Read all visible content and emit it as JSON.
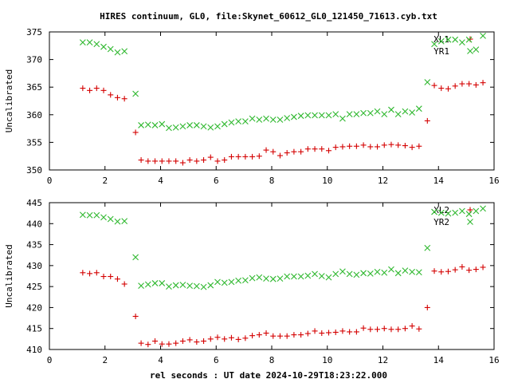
{
  "title": "HIRES continuum, GL0, file:Skynet_60612_GL0_121450_71613.cyb.txt",
  "xlabel": "rel seconds : UT date 2024-10-29T18:23:22.000",
  "colors": {
    "red": "#d40000",
    "green": "#2fb82f",
    "axis": "#000000"
  },
  "chart_data": [
    {
      "type": "scatter",
      "ylabel": "Uncalibrated",
      "xlim": [
        0,
        16
      ],
      "ylim": [
        350,
        375
      ],
      "xticks": [
        0,
        2,
        4,
        6,
        8,
        10,
        12,
        14,
        16
      ],
      "yticks": [
        350,
        355,
        360,
        365,
        370,
        375
      ],
      "legend_position": "top-right",
      "series": [
        {
          "name": "XL1",
          "marker": "plus",
          "color": "red",
          "points": [
            [
              1.2,
              364.8
            ],
            [
              1.45,
              364.4
            ],
            [
              1.7,
              364.8
            ],
            [
              1.95,
              364.4
            ],
            [
              2.2,
              363.6
            ],
            [
              2.45,
              363.1
            ],
            [
              2.7,
              362.9
            ],
            [
              3.1,
              356.8
            ],
            [
              3.3,
              351.8
            ],
            [
              3.55,
              351.6
            ],
            [
              3.8,
              351.6
            ],
            [
              4.05,
              351.6
            ],
            [
              4.3,
              351.6
            ],
            [
              4.55,
              351.6
            ],
            [
              4.8,
              351.3
            ],
            [
              5.05,
              351.8
            ],
            [
              5.3,
              351.6
            ],
            [
              5.55,
              351.8
            ],
            [
              5.8,
              352.3
            ],
            [
              6.05,
              351.6
            ],
            [
              6.3,
              351.8
            ],
            [
              6.55,
              352.4
            ],
            [
              6.8,
              352.4
            ],
            [
              7.05,
              352.4
            ],
            [
              7.3,
              352.4
            ],
            [
              7.55,
              352.5
            ],
            [
              7.8,
              353.6
            ],
            [
              8.05,
              353.3
            ],
            [
              8.3,
              352.6
            ],
            [
              8.55,
              353.1
            ],
            [
              8.8,
              353.3
            ],
            [
              9.05,
              353.3
            ],
            [
              9.3,
              353.8
            ],
            [
              9.55,
              353.8
            ],
            [
              9.8,
              353.8
            ],
            [
              10.05,
              353.5
            ],
            [
              10.3,
              354.1
            ],
            [
              10.55,
              354.2
            ],
            [
              10.8,
              354.3
            ],
            [
              11.05,
              354.3
            ],
            [
              11.3,
              354.5
            ],
            [
              11.55,
              354.2
            ],
            [
              11.8,
              354.2
            ],
            [
              12.05,
              354.5
            ],
            [
              12.3,
              354.6
            ],
            [
              12.55,
              354.5
            ],
            [
              12.8,
              354.4
            ],
            [
              13.05,
              354.1
            ],
            [
              13.3,
              354.3
            ],
            [
              13.6,
              358.9
            ],
            [
              13.85,
              365.3
            ],
            [
              14.1,
              364.8
            ],
            [
              14.35,
              364.7
            ],
            [
              14.6,
              365.2
            ],
            [
              14.85,
              365.6
            ],
            [
              15.1,
              365.6
            ],
            [
              15.35,
              365.4
            ],
            [
              15.6,
              365.8
            ]
          ]
        },
        {
          "name": "YR1",
          "marker": "cross",
          "color": "green",
          "points": [
            [
              1.2,
              373.1
            ],
            [
              1.45,
              373.1
            ],
            [
              1.7,
              372.8
            ],
            [
              1.95,
              372.3
            ],
            [
              2.2,
              371.9
            ],
            [
              2.45,
              371.3
            ],
            [
              2.7,
              371.5
            ],
            [
              3.1,
              363.8
            ],
            [
              3.3,
              358.1
            ],
            [
              3.55,
              358.2
            ],
            [
              3.8,
              358.1
            ],
            [
              4.05,
              358.3
            ],
            [
              4.3,
              357.6
            ],
            [
              4.55,
              357.7
            ],
            [
              4.8,
              357.9
            ],
            [
              5.05,
              358.1
            ],
            [
              5.3,
              358.1
            ],
            [
              5.55,
              357.9
            ],
            [
              5.8,
              357.7
            ],
            [
              6.05,
              357.9
            ],
            [
              6.3,
              358.3
            ],
            [
              6.55,
              358.6
            ],
            [
              6.8,
              358.8
            ],
            [
              7.05,
              358.8
            ],
            [
              7.3,
              359.3
            ],
            [
              7.55,
              359.1
            ],
            [
              7.8,
              359.3
            ],
            [
              8.05,
              359.1
            ],
            [
              8.3,
              359.1
            ],
            [
              8.55,
              359.4
            ],
            [
              8.8,
              359.6
            ],
            [
              9.05,
              359.8
            ],
            [
              9.3,
              359.9
            ],
            [
              9.55,
              359.9
            ],
            [
              9.8,
              359.9
            ],
            [
              10.05,
              359.9
            ],
            [
              10.3,
              360.1
            ],
            [
              10.55,
              359.3
            ],
            [
              10.8,
              360.1
            ],
            [
              11.05,
              360.1
            ],
            [
              11.3,
              360.3
            ],
            [
              11.55,
              360.3
            ],
            [
              11.8,
              360.6
            ],
            [
              12.05,
              360.1
            ],
            [
              12.3,
              360.9
            ],
            [
              12.55,
              360.1
            ],
            [
              12.8,
              360.6
            ],
            [
              13.05,
              360.4
            ],
            [
              13.3,
              361.1
            ],
            [
              13.6,
              365.9
            ],
            [
              13.85,
              372.8
            ],
            [
              14.1,
              373.3
            ],
            [
              14.35,
              373.6
            ],
            [
              14.6,
              373.6
            ],
            [
              14.85,
              373.1
            ],
            [
              15.1,
              373.6
            ],
            [
              15.35,
              371.8
            ],
            [
              15.6,
              374.3
            ]
          ]
        }
      ]
    },
    {
      "type": "scatter",
      "ylabel": "Uncalibrated",
      "xlim": [
        0,
        16
      ],
      "ylim": [
        410,
        445
      ],
      "xticks": [
        0,
        2,
        4,
        6,
        8,
        10,
        12,
        14,
        16
      ],
      "yticks": [
        410,
        415,
        420,
        425,
        430,
        435,
        440,
        445
      ],
      "legend_position": "top-right",
      "series": [
        {
          "name": "XL2",
          "marker": "plus",
          "color": "red",
          "points": [
            [
              1.2,
              428.3
            ],
            [
              1.45,
              428.1
            ],
            [
              1.7,
              428.3
            ],
            [
              1.95,
              427.4
            ],
            [
              2.2,
              427.4
            ],
            [
              2.45,
              426.8
            ],
            [
              2.7,
              425.6
            ],
            [
              3.1,
              417.9
            ],
            [
              3.3,
              411.5
            ],
            [
              3.55,
              411.2
            ],
            [
              3.8,
              412.0
            ],
            [
              4.05,
              411.3
            ],
            [
              4.3,
              411.3
            ],
            [
              4.55,
              411.5
            ],
            [
              4.8,
              412.0
            ],
            [
              5.05,
              412.3
            ],
            [
              5.3,
              411.8
            ],
            [
              5.55,
              412.0
            ],
            [
              5.8,
              412.5
            ],
            [
              6.05,
              412.9
            ],
            [
              6.3,
              412.5
            ],
            [
              6.55,
              412.8
            ],
            [
              6.8,
              412.4
            ],
            [
              7.05,
              412.7
            ],
            [
              7.3,
              413.3
            ],
            [
              7.55,
              413.5
            ],
            [
              7.8,
              413.9
            ],
            [
              8.05,
              413.2
            ],
            [
              8.3,
              413.2
            ],
            [
              8.55,
              413.2
            ],
            [
              8.8,
              413.5
            ],
            [
              9.05,
              413.5
            ],
            [
              9.3,
              413.8
            ],
            [
              9.55,
              414.4
            ],
            [
              9.8,
              413.9
            ],
            [
              10.05,
              414.0
            ],
            [
              10.3,
              414.1
            ],
            [
              10.55,
              414.4
            ],
            [
              10.8,
              414.2
            ],
            [
              11.05,
              414.2
            ],
            [
              11.3,
              415.1
            ],
            [
              11.55,
              414.8
            ],
            [
              11.8,
              414.8
            ],
            [
              12.05,
              415.0
            ],
            [
              12.3,
              414.8
            ],
            [
              12.55,
              414.8
            ],
            [
              12.8,
              415.0
            ],
            [
              13.05,
              415.6
            ],
            [
              13.3,
              414.9
            ],
            [
              13.6,
              420.0
            ],
            [
              13.85,
              428.7
            ],
            [
              14.1,
              428.5
            ],
            [
              14.35,
              428.6
            ],
            [
              14.6,
              429.0
            ],
            [
              14.85,
              429.7
            ],
            [
              15.1,
              428.9
            ],
            [
              15.35,
              429.1
            ],
            [
              15.6,
              429.6
            ]
          ]
        },
        {
          "name": "YR2",
          "marker": "cross",
          "color": "green",
          "points": [
            [
              1.2,
              442.1
            ],
            [
              1.45,
              442.0
            ],
            [
              1.7,
              442.0
            ],
            [
              1.95,
              441.5
            ],
            [
              2.2,
              441.1
            ],
            [
              2.45,
              440.5
            ],
            [
              2.7,
              440.6
            ],
            [
              3.1,
              432.0
            ],
            [
              3.3,
              425.2
            ],
            [
              3.55,
              425.5
            ],
            [
              3.8,
              425.8
            ],
            [
              4.05,
              425.8
            ],
            [
              4.3,
              425.0
            ],
            [
              4.55,
              425.3
            ],
            [
              4.8,
              425.4
            ],
            [
              5.05,
              425.2
            ],
            [
              5.3,
              425.1
            ],
            [
              5.55,
              424.9
            ],
            [
              5.8,
              425.3
            ],
            [
              6.05,
              426.1
            ],
            [
              6.3,
              425.9
            ],
            [
              6.55,
              426.1
            ],
            [
              6.8,
              426.4
            ],
            [
              7.05,
              426.5
            ],
            [
              7.3,
              427.0
            ],
            [
              7.55,
              427.2
            ],
            [
              7.8,
              426.9
            ],
            [
              8.05,
              426.8
            ],
            [
              8.3,
              426.9
            ],
            [
              8.55,
              427.4
            ],
            [
              8.8,
              427.4
            ],
            [
              9.05,
              427.4
            ],
            [
              9.3,
              427.6
            ],
            [
              9.55,
              428.0
            ],
            [
              9.8,
              427.5
            ],
            [
              10.05,
              427.2
            ],
            [
              10.3,
              428.0
            ],
            [
              10.55,
              428.6
            ],
            [
              10.8,
              428.0
            ],
            [
              11.05,
              427.8
            ],
            [
              11.3,
              428.2
            ],
            [
              11.55,
              428.1
            ],
            [
              11.8,
              428.5
            ],
            [
              12.05,
              428.3
            ],
            [
              12.3,
              429.1
            ],
            [
              12.55,
              428.2
            ],
            [
              12.8,
              428.8
            ],
            [
              13.05,
              428.5
            ],
            [
              13.3,
              428.4
            ],
            [
              13.6,
              434.2
            ],
            [
              13.85,
              442.8
            ],
            [
              14.1,
              442.6
            ],
            [
              14.35,
              442.4
            ],
            [
              14.6,
              442.6
            ],
            [
              14.85,
              443.0
            ],
            [
              15.1,
              442.3
            ],
            [
              15.35,
              443.0
            ],
            [
              15.6,
              443.6
            ]
          ]
        }
      ]
    }
  ]
}
